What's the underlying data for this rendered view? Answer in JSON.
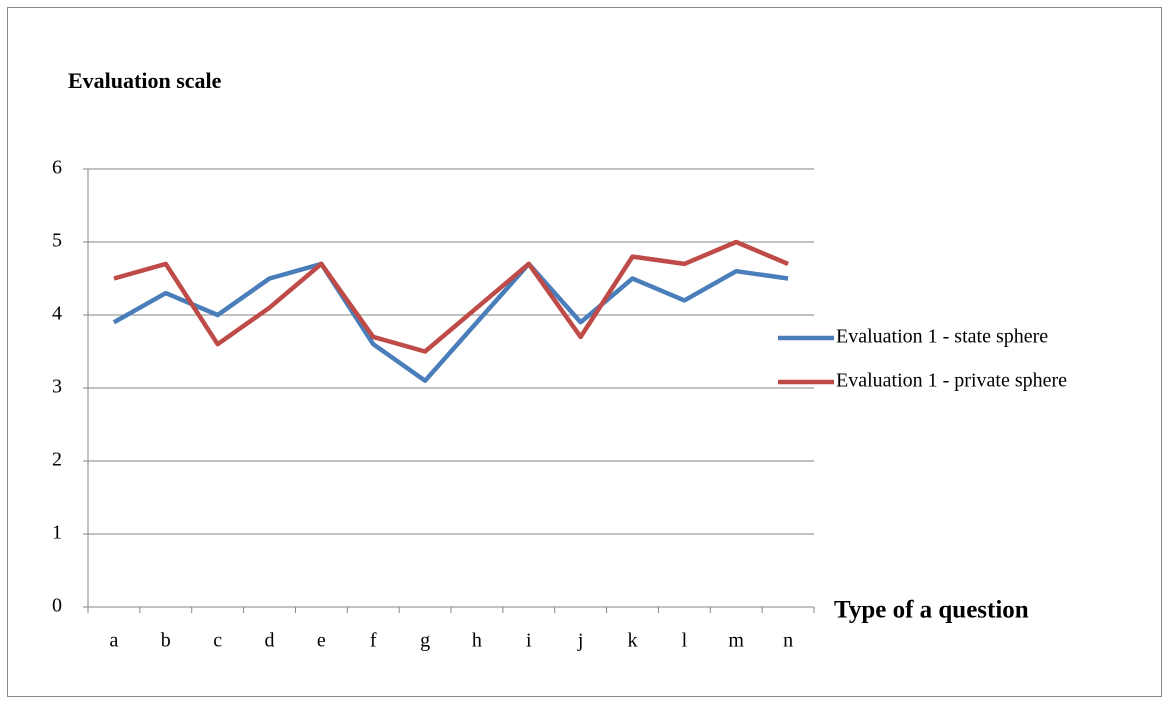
{
  "chart_data": {
    "type": "line",
    "title": "Evaluation scale",
    "x_label": "Type of a question",
    "categories": [
      "a",
      "b",
      "c",
      "d",
      "e",
      "f",
      "g",
      "h",
      "i",
      "j",
      "k",
      "l",
      "m",
      "n"
    ],
    "series": [
      {
        "name": "Evaluation 1 - state sphere",
        "color": "#4a7ebb",
        "values": [
          3.9,
          4.3,
          4.0,
          4.5,
          4.7,
          3.6,
          3.1,
          3.9,
          4.7,
          3.9,
          4.5,
          4.2,
          4.6,
          4.5
        ]
      },
      {
        "name": "Evaluation 1 - private sphere",
        "color": "#be4b48",
        "values": [
          4.5,
          4.7,
          3.6,
          4.1,
          4.7,
          3.7,
          3.5,
          4.1,
          4.7,
          3.7,
          4.8,
          4.7,
          5.0,
          4.7
        ]
      }
    ],
    "ylim": [
      0,
      6
    ],
    "yticks": [
      0,
      1,
      2,
      3,
      4,
      5,
      6
    ],
    "grid": true,
    "legend": "right"
  }
}
